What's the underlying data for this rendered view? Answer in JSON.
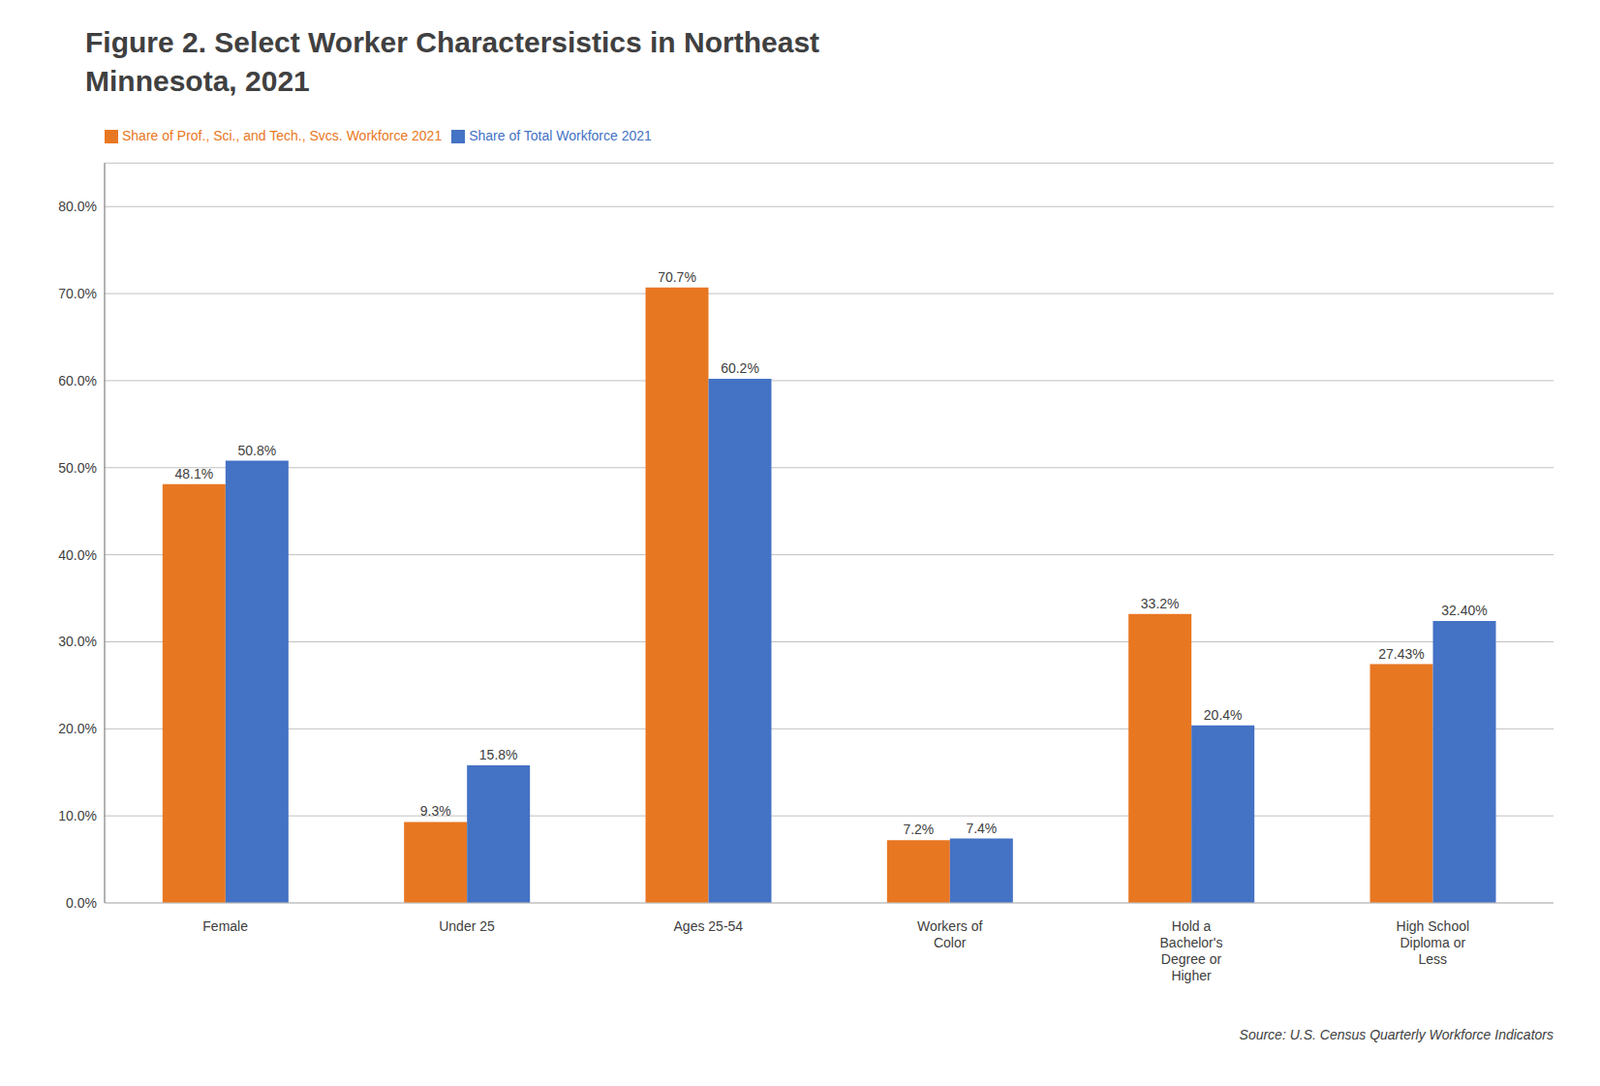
{
  "chart_data": {
    "type": "bar",
    "title": "Figure 2.  Select Worker Charactersistics in Northeast\nMinnesota, 2021",
    "source": "Source:  U.S. Census Quarterly Workforce Indicators",
    "categories": [
      "Female",
      "Under 25",
      "Ages 25-54",
      "Workers of\nColor",
      "Hold a\nBachelor's\nDegree or\nHigher",
      "High School\nDiploma or\nLess"
    ],
    "series": [
      {
        "name": "Share of Prof., Sci., and Tech., Svcs. Workforce 2021",
        "color": "#E87722",
        "values": [
          48.1,
          9.3,
          70.7,
          7.2,
          33.2,
          27.43
        ],
        "value_labels": [
          "48.1%",
          "9.3%",
          "70.7%",
          "7.2%",
          "33.2%",
          "27.43%"
        ]
      },
      {
        "name": "Share of Total Workforce 2021",
        "color": "#4472C4",
        "values": [
          50.8,
          15.8,
          60.2,
          7.4,
          20.4,
          32.4
        ],
        "value_labels": [
          "50.8%",
          "15.8%",
          "60.2%",
          "7.4%",
          "20.4%",
          "32.40%"
        ]
      }
    ],
    "ylim": [
      0,
      85
    ],
    "yticks": [
      {
        "value": 0,
        "label": "0.0%"
      },
      {
        "value": 10,
        "label": "10.0%"
      },
      {
        "value": 20,
        "label": "20.0%"
      },
      {
        "value": 30,
        "label": "30.0%"
      },
      {
        "value": 40,
        "label": "40.0%"
      },
      {
        "value": 50,
        "label": "50.0%"
      },
      {
        "value": 60,
        "label": "60.0%"
      },
      {
        "value": 70,
        "label": "70.0%"
      },
      {
        "value": 80,
        "label": "80.0%"
      }
    ],
    "grid": true,
    "legend": "top",
    "data_labels": true
  }
}
